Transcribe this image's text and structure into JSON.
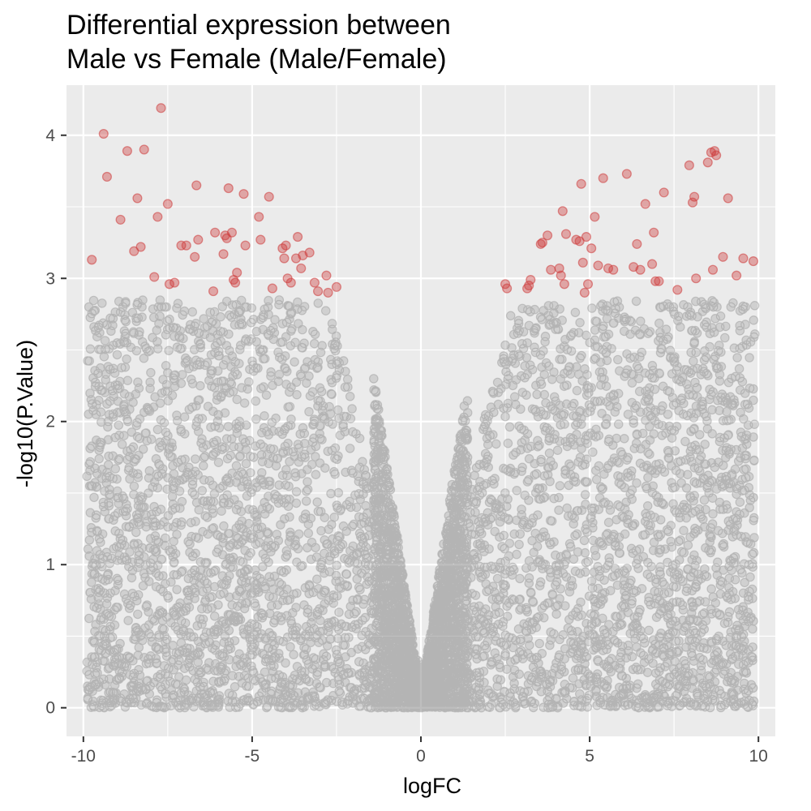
{
  "chart_data": {
    "type": "scatter",
    "title": [
      "Differential expression between",
      "Male vs Female (Male/Female)"
    ],
    "xlabel": "logFC",
    "ylabel": "-log10(P.Value)",
    "xlim": [
      -10.5,
      10.5
    ],
    "ylim": [
      -0.2,
      4.35
    ],
    "x_ticks": [
      -10,
      -5,
      0,
      5,
      10
    ],
    "x_tick_labels": [
      "-10",
      "-5",
      "0",
      "5",
      "10"
    ],
    "y_ticks": [
      0,
      1,
      2,
      3,
      4
    ],
    "y_tick_labels": [
      "0",
      "1",
      "2",
      "3",
      "4"
    ],
    "grid": true,
    "background": "#ebebeb",
    "colors": {
      "significant": "#cd3c3c",
      "not_significant": "#808080"
    },
    "significant_points": [
      [
        -9.75,
        3.13
      ],
      [
        -9.4,
        4.01
      ],
      [
        -9.3,
        3.71
      ],
      [
        -8.9,
        3.41
      ],
      [
        -8.7,
        3.89
      ],
      [
        -8.5,
        3.19
      ],
      [
        -8.4,
        3.56
      ],
      [
        -8.3,
        3.22
      ],
      [
        -8.2,
        3.9
      ],
      [
        -7.9,
        3.01
      ],
      [
        -7.8,
        3.43
      ],
      [
        -7.7,
        4.19
      ],
      [
        -7.45,
        2.96
      ],
      [
        -7.5,
        3.52
      ],
      [
        -7.3,
        2.97
      ],
      [
        -7.1,
        3.23
      ],
      [
        -6.95,
        3.23
      ],
      [
        -6.7,
        3.15
      ],
      [
        -6.65,
        3.65
      ],
      [
        -6.6,
        3.27
      ],
      [
        -6.15,
        2.91
      ],
      [
        -6.1,
        3.32
      ],
      [
        -5.85,
        3.17
      ],
      [
        -5.8,
        3.3
      ],
      [
        -5.75,
        3.28
      ],
      [
        -5.7,
        3.63
      ],
      [
        -5.6,
        3.32
      ],
      [
        -5.55,
        2.99
      ],
      [
        -5.5,
        2.97
      ],
      [
        -5.45,
        3.04
      ],
      [
        -5.25,
        3.59
      ],
      [
        -5.2,
        3.23
      ],
      [
        -4.8,
        3.43
      ],
      [
        -4.75,
        3.27
      ],
      [
        -4.5,
        3.57
      ],
      [
        -4.4,
        2.93
      ],
      [
        -4.1,
        3.21
      ],
      [
        -4.05,
        3.14
      ],
      [
        -4.0,
        3.23
      ],
      [
        -3.95,
        3.0
      ],
      [
        -3.85,
        2.97
      ],
      [
        -3.7,
        3.14
      ],
      [
        -3.65,
        3.29
      ],
      [
        -3.55,
        3.07
      ],
      [
        -3.5,
        3.16
      ],
      [
        -3.3,
        3.18
      ],
      [
        -3.15,
        2.97
      ],
      [
        -3.05,
        2.91
      ],
      [
        -2.8,
        3.02
      ],
      [
        -2.75,
        2.9
      ],
      [
        -2.5,
        2.94
      ],
      [
        2.5,
        2.96
      ],
      [
        2.55,
        2.93
      ],
      [
        3.15,
        2.93
      ],
      [
        3.2,
        2.95
      ],
      [
        3.25,
        2.99
      ],
      [
        3.55,
        3.24
      ],
      [
        3.6,
        3.25
      ],
      [
        3.75,
        3.3
      ],
      [
        3.85,
        3.06
      ],
      [
        4.1,
        3.07
      ],
      [
        4.15,
        3.02
      ],
      [
        4.2,
        3.47
      ],
      [
        4.25,
        2.96
      ],
      [
        4.3,
        3.31
      ],
      [
        4.6,
        3.27
      ],
      [
        4.7,
        3.26
      ],
      [
        4.75,
        3.66
      ],
      [
        4.8,
        3.11
      ],
      [
        4.85,
        2.9
      ],
      [
        4.9,
        3.29
      ],
      [
        4.95,
        2.96
      ],
      [
        5.05,
        3.21
      ],
      [
        5.15,
        3.43
      ],
      [
        5.25,
        3.09
      ],
      [
        5.4,
        3.7
      ],
      [
        5.55,
        3.07
      ],
      [
        5.7,
        3.06
      ],
      [
        6.1,
        3.73
      ],
      [
        6.3,
        3.08
      ],
      [
        6.4,
        3.24
      ],
      [
        6.5,
        3.06
      ],
      [
        6.65,
        3.52
      ],
      [
        6.85,
        3.1
      ],
      [
        6.9,
        3.32
      ],
      [
        6.95,
        2.98
      ],
      [
        7.05,
        2.98
      ],
      [
        7.2,
        3.6
      ],
      [
        7.6,
        2.92
      ],
      [
        7.95,
        3.79
      ],
      [
        8.05,
        3.53
      ],
      [
        8.1,
        3.57
      ],
      [
        8.15,
        3.0
      ],
      [
        8.5,
        3.81
      ],
      [
        8.6,
        3.88
      ],
      [
        8.65,
        3.06
      ],
      [
        8.7,
        3.89
      ],
      [
        8.75,
        3.86
      ],
      [
        8.95,
        3.15
      ],
      [
        9.1,
        3.56
      ],
      [
        9.35,
        3.02
      ],
      [
        9.55,
        3.14
      ],
      [
        9.85,
        3.12
      ]
    ]
  }
}
